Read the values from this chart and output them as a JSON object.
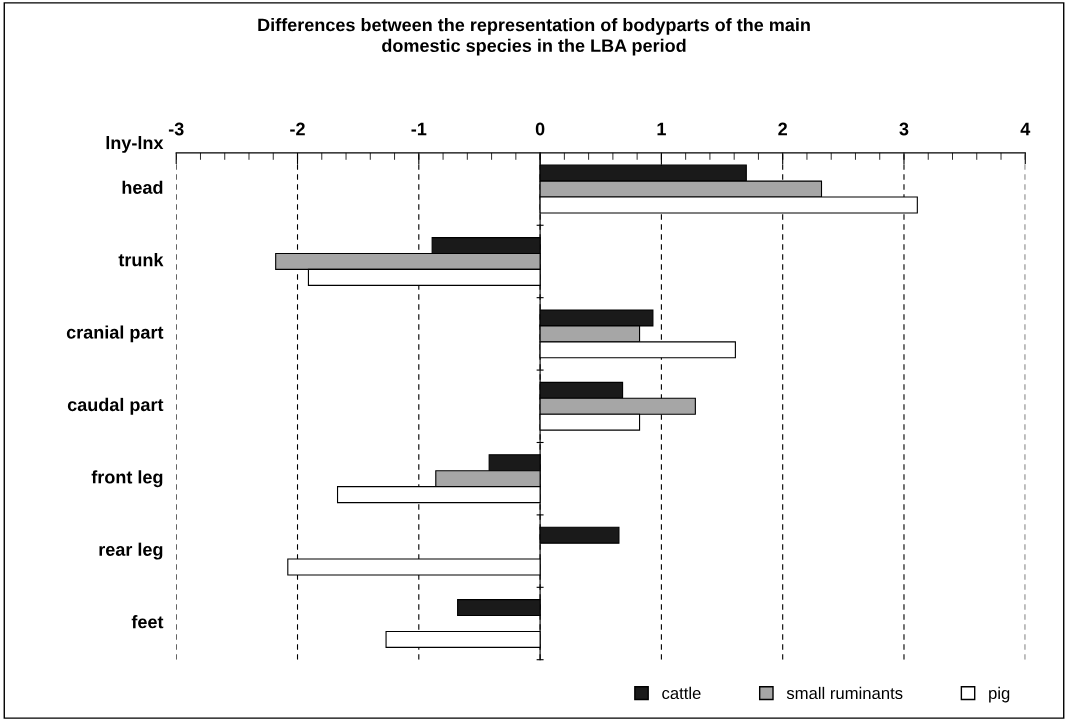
{
  "chart_data": {
    "type": "bar",
    "orientation": "horizontal",
    "title": "Differences between the representation of bodyparts of the main\ndomestic species in the LBA period",
    "xlabel": "lny-lnx",
    "categories": [
      "head",
      "trunk",
      "cranial part",
      "caudal part",
      "front leg",
      "rear leg",
      "feet"
    ],
    "series": [
      {
        "name": "cattle",
        "color": "#1a1a1a",
        "values": [
          1.7,
          -0.89,
          0.93,
          0.68,
          -0.42,
          0.65,
          -0.68
        ]
      },
      {
        "name": "small ruminants",
        "color": "#a6a6a6",
        "values": [
          2.32,
          -2.18,
          0.82,
          1.28,
          -0.86,
          null,
          null
        ]
      },
      {
        "name": "pig",
        "color": "#ffffff",
        "values": [
          3.11,
          -1.91,
          1.61,
          0.82,
          -1.67,
          -2.08,
          -1.27
        ]
      }
    ],
    "xlim": [
      -3,
      4
    ],
    "xticks": [
      -3,
      -2,
      -1,
      0,
      1,
      2,
      3,
      4
    ],
    "grid": "x",
    "legend": "bottom right"
  }
}
